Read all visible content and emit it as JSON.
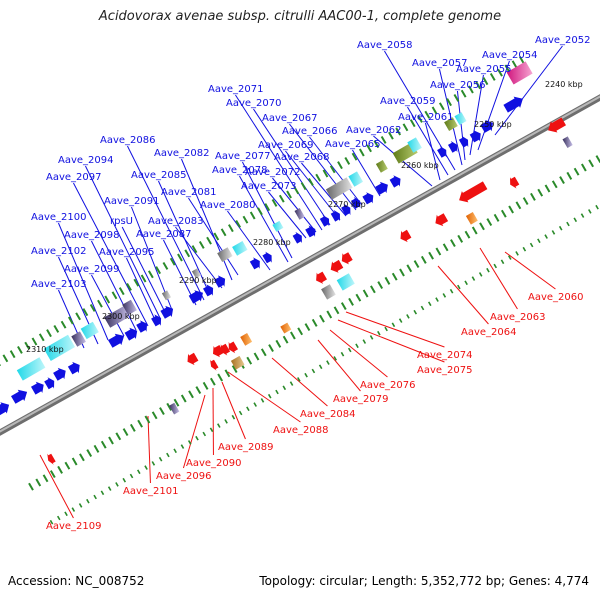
{
  "title": "Acidovorax avenae subsp. citrulli AAC00-1, complete genome",
  "footer": {
    "accession": "Accession: NC_008752",
    "topology": "Topology: circular; Length: 5,352,772 bp; Genes: 4,774"
  },
  "colors": {
    "plus_strand": "#1010e0",
    "minus_strand": "#ee1111",
    "backbone": "#888888",
    "tick": "#2a8a2a"
  },
  "kbp_labels": [
    "2240 kbp",
    "2250 kbp",
    "2260 kbp",
    "2270 kbp",
    "2280 kbp",
    "2290 kbp",
    "2300 kbp",
    "2310 kbp"
  ],
  "plus_genes": [
    "Aave_2052",
    "Aave_2054",
    "Aave_2055",
    "Aave_2056",
    "Aave_2057",
    "Aave_2058",
    "Aave_2059",
    "Aave_2061",
    "Aave_2062",
    "Aave_2065",
    "Aave_2066",
    "Aave_2067",
    "Aave_2068",
    "Aave_2069",
    "Aave_2070",
    "Aave_2071",
    "Aave_2072",
    "Aave_2073",
    "Aave_2077",
    "Aave_2078",
    "Aave_2080",
    "Aave_2081",
    "Aave_2082",
    "Aave_2083",
    "Aave_2085",
    "Aave_2086",
    "Aave_2087",
    "Aave_2091",
    "rpsU",
    "Aave_2094",
    "Aave_2095",
    "Aave_2097",
    "Aave_2098",
    "Aave_2099",
    "Aave_2100",
    "Aave_2102",
    "Aave_2103"
  ],
  "minus_genes": [
    "Aave_2060",
    "Aave_2063",
    "Aave_2064",
    "Aave_2074",
    "Aave_2075",
    "Aave_2076",
    "Aave_2079",
    "Aave_2084",
    "Aave_2088",
    "Aave_2089",
    "Aave_2090",
    "Aave_2096",
    "Aave_2101",
    "Aave_2109"
  ]
}
